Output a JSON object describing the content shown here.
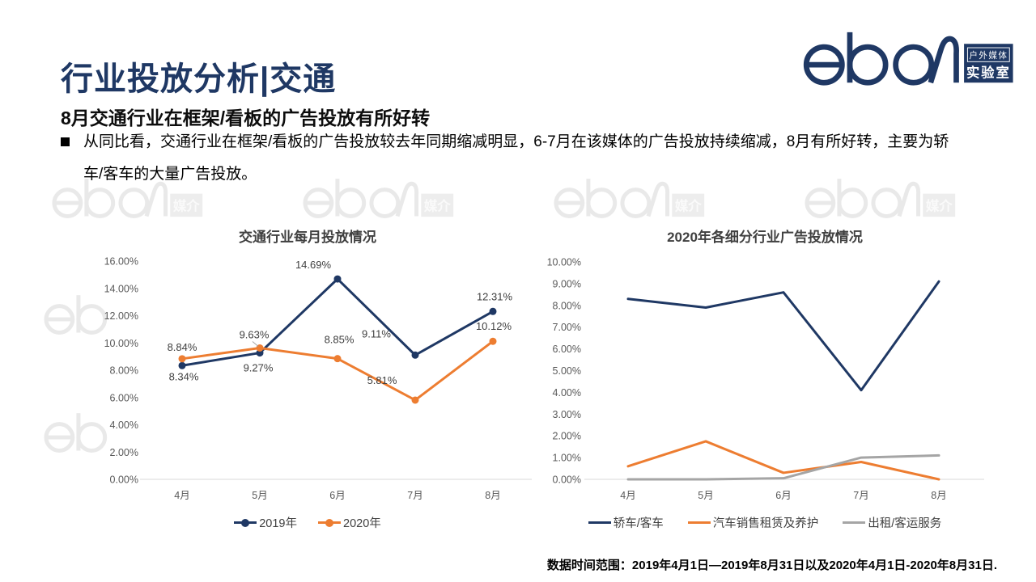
{
  "header": {
    "title": "行业投放分析|交通",
    "subtitle": "8月交通行业在框架/看板的广告投放有所好转"
  },
  "logo": {
    "wordmark": "eboR",
    "badge_line1": "户外媒体",
    "badge_line2": "实验室",
    "color": "#1f3864"
  },
  "watermark": {
    "text": "eboR",
    "badge": "媒介"
  },
  "body": {
    "bullet_text": "从同比看，交通行业在框架/看板的广告投放较去年同期缩减明显，6-7月在该媒体的广告投放持续缩减，8月有所好转，主要为轿车/客车的大量广告投放。"
  },
  "footer": {
    "note": "数据时间范围：2019年4月1日—2019年8月31日以及2020年4月1日-2020年8月31日."
  },
  "chart_data": [
    {
      "type": "line",
      "title": "交通行业每月投放情况",
      "categories": [
        "4月",
        "5月",
        "6月",
        "7月",
        "8月"
      ],
      "series": [
        {
          "name": "2019年",
          "color": "#1f3864",
          "values": [
            8.34,
            9.27,
            14.69,
            9.11,
            12.31
          ]
        },
        {
          "name": "2020年",
          "color": "#ed7d31",
          "values": [
            8.84,
            9.63,
            8.85,
            5.81,
            10.12
          ]
        }
      ],
      "ylim": [
        0,
        16
      ],
      "ystep": 2,
      "markers": true,
      "data_labels": true,
      "grid": false,
      "legend_position": "bottom",
      "xlabel": "",
      "ylabel": ""
    },
    {
      "type": "line",
      "title": "2020年各细分行业广告投放情况",
      "categories": [
        "4月",
        "5月",
        "6月",
        "7月",
        "8月"
      ],
      "series": [
        {
          "name": "轿车/客车",
          "color": "#1f3864",
          "values": [
            8.3,
            7.9,
            8.6,
            4.1,
            9.1
          ]
        },
        {
          "name": "汽车销售租赁及养护",
          "color": "#ed7d31",
          "values": [
            0.6,
            1.75,
            0.3,
            0.8,
            0.0
          ]
        },
        {
          "name": "出租/客运服务",
          "color": "#a5a5a5",
          "values": [
            0.0,
            0.0,
            0.05,
            1.0,
            1.1
          ]
        }
      ],
      "ylim": [
        0,
        10
      ],
      "ystep": 1,
      "markers": false,
      "data_labels": false,
      "grid": false,
      "legend_position": "bottom",
      "xlabel": "",
      "ylabel": ""
    }
  ],
  "colors": {
    "brand_navy": "#1f3864",
    "accent_orange": "#ed7d31",
    "accent_gray": "#a5a5a5",
    "axis_text": "#595959",
    "axis_line": "#d9d9d9"
  }
}
